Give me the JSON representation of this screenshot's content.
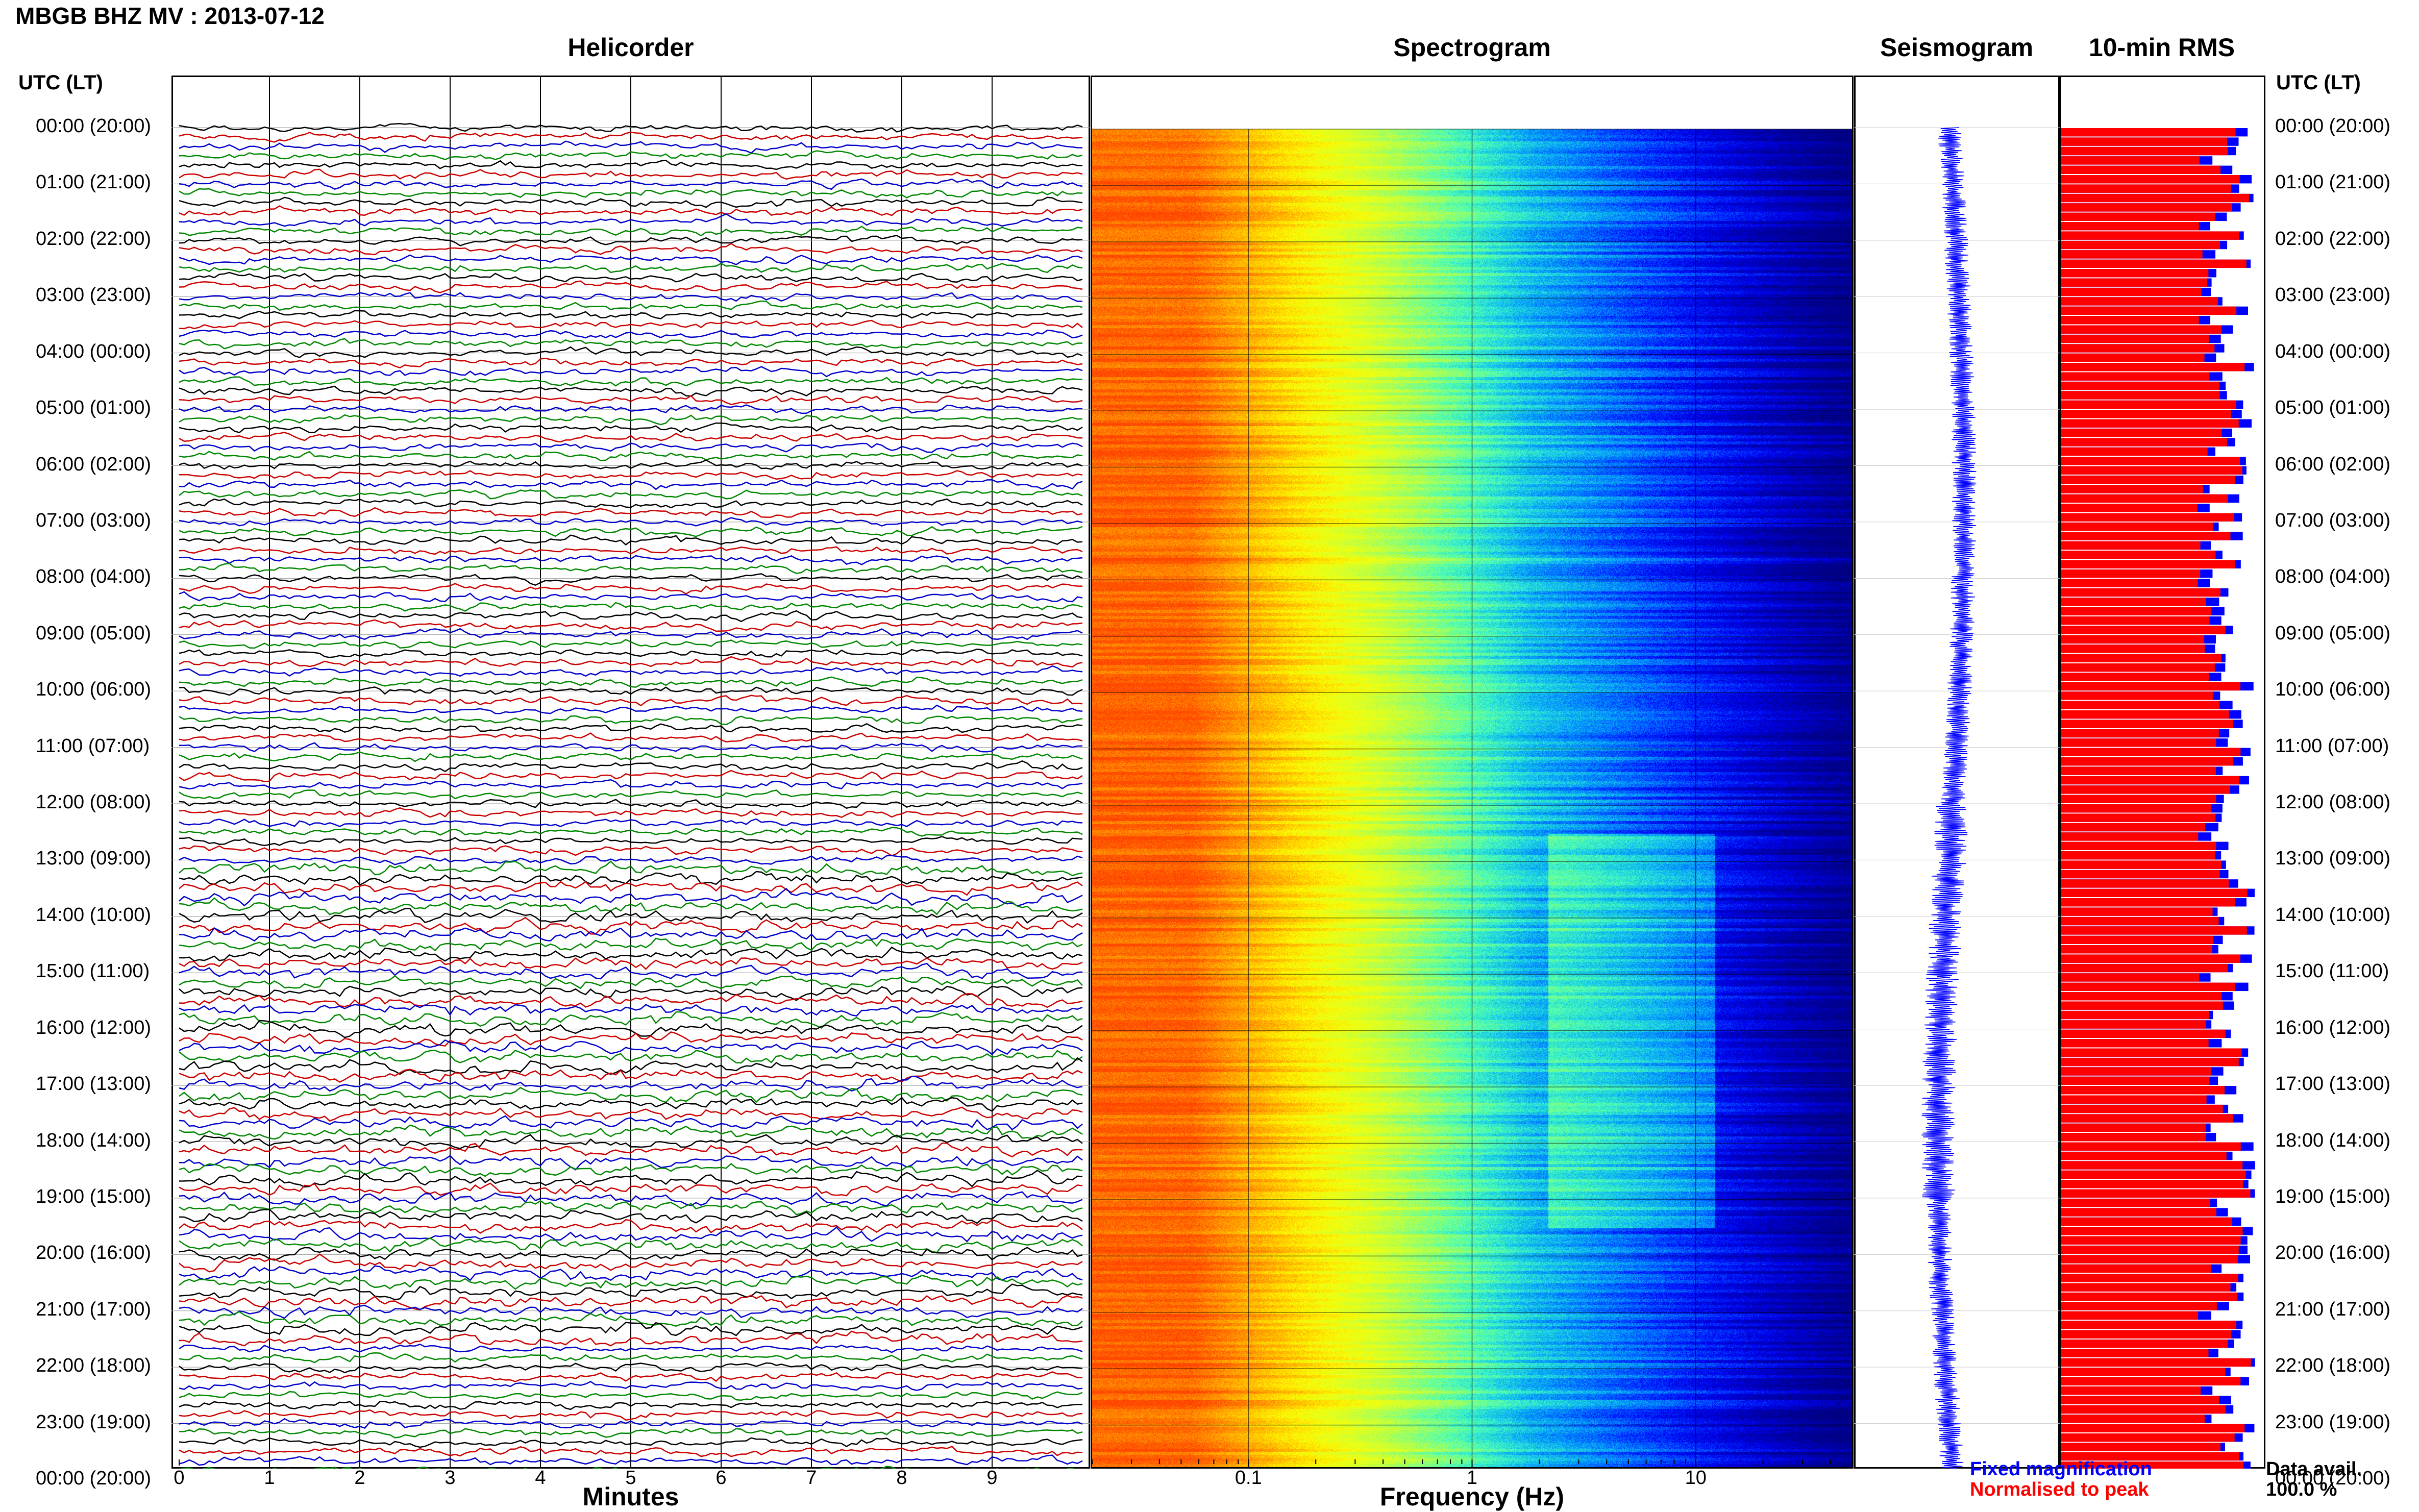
{
  "header": {
    "title": "MBGB BHZ MV : 2013-07-12",
    "utc_label": "UTC (LT)"
  },
  "panels": {
    "helicorder": "Helicorder",
    "spectrogram": "Spectrogram",
    "seismogram": "Seismogram",
    "rms": "10-min RMS"
  },
  "time_labels": [
    "00:00 (20:00)",
    "01:00 (21:00)",
    "02:00 (22:00)",
    "03:00 (23:00)",
    "04:00 (00:00)",
    "05:00 (01:00)",
    "06:00 (02:00)",
    "07:00 (03:00)",
    "08:00 (04:00)",
    "09:00 (05:00)",
    "10:00 (06:00)",
    "11:00 (07:00)",
    "12:00 (08:00)",
    "13:00 (09:00)",
    "14:00 (10:00)",
    "15:00 (11:00)",
    "16:00 (12:00)",
    "17:00 (13:00)",
    "18:00 (14:00)",
    "19:00 (15:00)",
    "20:00 (16:00)",
    "21:00 (17:00)",
    "22:00 (18:00)",
    "23:00 (19:00)",
    "00:00 (20:00)"
  ],
  "legend": {
    "fixed": "Fixed magnification",
    "normalised": "Normalised to peak",
    "fixed_color": "#0000ff",
    "normalised_color": "#ff0000"
  },
  "availability": {
    "label": "Data avail.",
    "value": "100.0 %"
  },
  "chart_data": [
    {
      "type": "line",
      "name": "helicorder",
      "xlabel": "Minutes",
      "x_ticks": [
        "0",
        "1",
        "2",
        "3",
        "4",
        "5",
        "6",
        "7",
        "8",
        "9"
      ],
      "xlim": [
        0,
        10
      ],
      "rows": 144,
      "trace_colors": [
        "#000000",
        "#cc0000",
        "#0000cc",
        "#008800"
      ]
    },
    {
      "type": "heatmap",
      "name": "spectrogram",
      "xlabel": "Frequency (Hz)",
      "x_scale": "log",
      "x_ticks": [
        "0.1",
        "1",
        "10"
      ],
      "xlim": [
        0.02,
        50
      ],
      "colormap": [
        "#000080",
        "#0000ff",
        "#00a0ff",
        "#40ffc0",
        "#c0ff40",
        "#ffff00",
        "#ffa000",
        "#ff4000"
      ]
    },
    {
      "type": "line",
      "name": "seismogram",
      "color": "#0000ff"
    },
    {
      "type": "bar",
      "name": "10-min RMS",
      "orientation": "horizontal",
      "bar_count": 144,
      "series": [
        {
          "name": "Fixed magnification",
          "color": "#0000ff"
        },
        {
          "name": "Normalised to peak",
          "color": "#ff0000"
        }
      ]
    }
  ]
}
